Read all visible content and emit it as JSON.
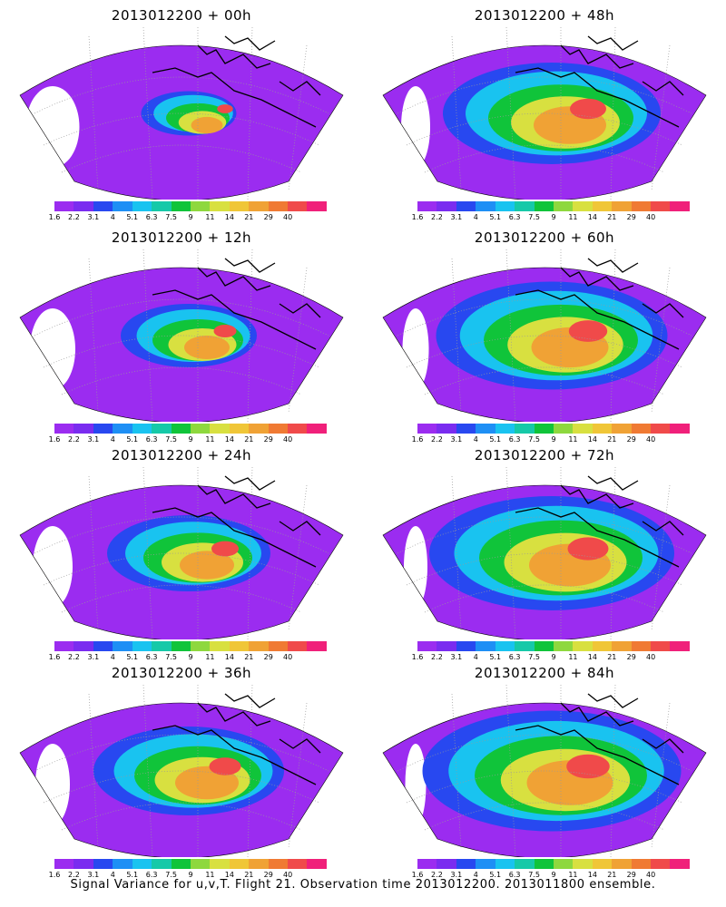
{
  "figure": {
    "footer": "Signal Variance for u,v,T. Flight 21. Observation time 2013012200. 2013011800 ensemble."
  },
  "colorbar": {
    "tick_labels": [
      "1.6",
      "2.2",
      "3.1",
      "4",
      "5.1",
      "6.3",
      "7.5",
      "9",
      "11",
      "14",
      "21",
      "29",
      "40"
    ],
    "colors": [
      "#9b2cf0",
      "#7a2cf0",
      "#2848f0",
      "#1e8ff5",
      "#19c3f0",
      "#16c9a8",
      "#10c43a",
      "#8ed83e",
      "#d8e040",
      "#f0c637",
      "#f0a235",
      "#f07a33",
      "#f04a4a",
      "#f0207a"
    ]
  },
  "panels": [
    {
      "title": "2013012200 + 00h",
      "intensity": 0.35
    },
    {
      "title": "2013012200 + 12h",
      "intensity": 0.5
    },
    {
      "title": "2013012200 + 24h",
      "intensity": 0.6
    },
    {
      "title": "2013012200 + 36h",
      "intensity": 0.7
    },
    {
      "title": "2013012200 + 48h",
      "intensity": 0.8
    },
    {
      "title": "2013012200 + 60h",
      "intensity": 0.85
    },
    {
      "title": "2013012200 + 72h",
      "intensity": 0.9
    },
    {
      "title": "2013012200 + 84h",
      "intensity": 0.95
    }
  ]
}
